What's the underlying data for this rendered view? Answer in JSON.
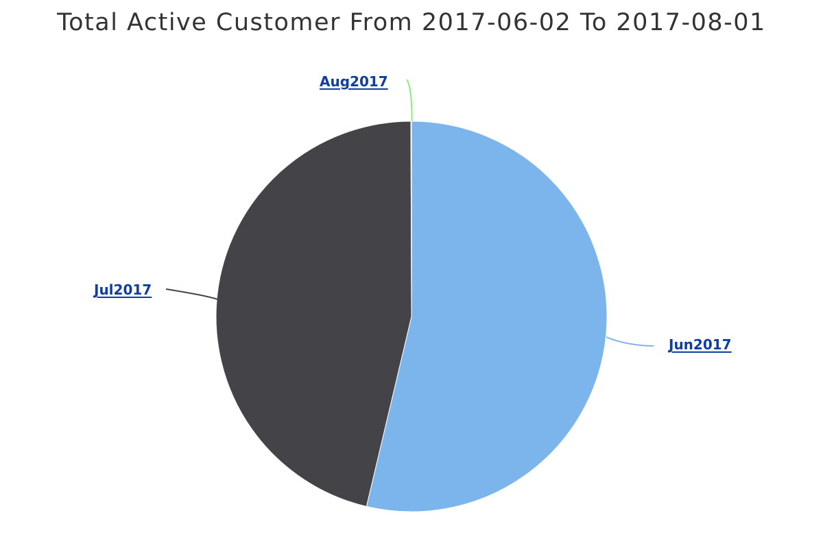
{
  "page": {
    "background": "#ffffff"
  },
  "chart_data": {
    "type": "pie",
    "title": "Total Active Customer From 2017-06-02 To 2017-08-01",
    "title_color": "#333333",
    "label_color": "#0d3ea0",
    "slice_border_color": "#ffffff",
    "start_angle_deg": -90,
    "direction": "clockwise",
    "legend": "none",
    "slices": [
      {
        "label": "Jun2017",
        "value_pct": 53.7,
        "color": "#7cb5ec"
      },
      {
        "label": "Jul2017",
        "value_pct": 46.25,
        "color": "#434348"
      },
      {
        "label": "Aug2017",
        "value_pct": 0.05,
        "color": "#90ed7d"
      }
    ]
  }
}
